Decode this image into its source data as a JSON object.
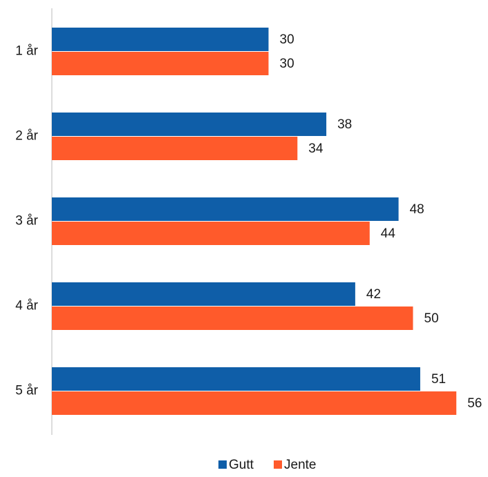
{
  "chart_data": {
    "type": "bar",
    "orientation": "horizontal",
    "categories": [
      "1 år",
      "2 år",
      "3 år",
      "4 år",
      "5 år"
    ],
    "series": [
      {
        "name": "Gutt",
        "values": [
          30,
          38,
          48,
          42,
          51
        ],
        "color": "#0F5EA8"
      },
      {
        "name": "Jente",
        "values": [
          30,
          34,
          44,
          50,
          56
        ],
        "color": "#FF5A2B"
      }
    ],
    "xlim": [
      0,
      60
    ],
    "grid": false,
    "legend_position": "bottom"
  }
}
